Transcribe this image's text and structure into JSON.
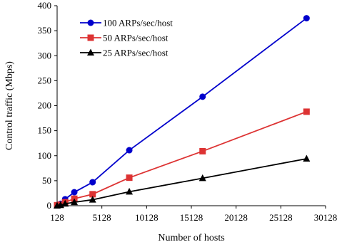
{
  "chart_data": {
    "type": "line",
    "xlabel": "Number of hosts",
    "ylabel": "Control traffic (Mbps)",
    "xlim": [
      128,
      30128
    ],
    "ylim": [
      0,
      400
    ],
    "xticks": [
      128,
      5128,
      10128,
      15128,
      20128,
      25128,
      30128
    ],
    "yticks": [
      0,
      50,
      100,
      150,
      200,
      250,
      300,
      350,
      400
    ],
    "grid": false,
    "legend_position": "top-left",
    "x": [
      128,
      512,
      1024,
      2048,
      4096,
      8192,
      16384,
      28000
    ],
    "series": [
      {
        "name": "100 ARPs/sec/host",
        "color": "#0000cc",
        "marker": "circle",
        "values": [
          1,
          4,
          13,
          27,
          47,
          111,
          218,
          375
        ]
      },
      {
        "name": "50 ARPs/sec/host",
        "color": "#dd3333",
        "marker": "square",
        "values": [
          1,
          2,
          7,
          14,
          23,
          56,
          109,
          188
        ]
      },
      {
        "name": "25 ARPs/sec/host",
        "color": "#000000",
        "marker": "triangle",
        "values": [
          0,
          1,
          4,
          7,
          12,
          28,
          55,
          94
        ]
      }
    ]
  }
}
